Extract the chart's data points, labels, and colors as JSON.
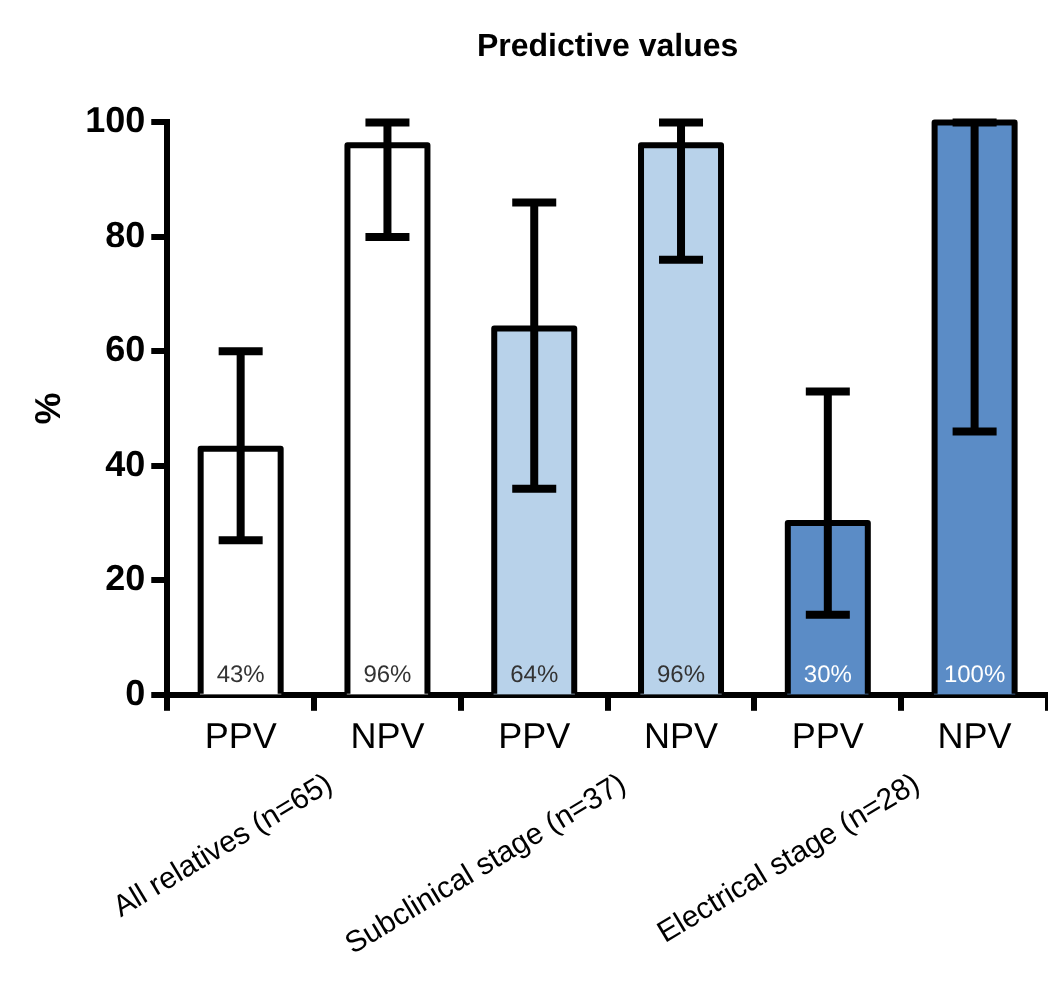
{
  "chart_data": {
    "type": "bar",
    "title": "Predictive values",
    "ylabel": "%",
    "categories": [
      "PPV",
      "NPV",
      "PPV",
      "NPV",
      "PPV",
      "NPV"
    ],
    "values": [
      43,
      96,
      64,
      96,
      30,
      100
    ],
    "colors": [
      "#ffffff",
      "#ffffff",
      "#b8d2ea",
      "#b8d2ea",
      "#5b8cc6",
      "#5b8cc6"
    ],
    "errors": [
      [
        27,
        60
      ],
      [
        80,
        100
      ],
      [
        36,
        86
      ],
      [
        76,
        100
      ],
      [
        14,
        53
      ],
      [
        46,
        100
      ]
    ],
    "value_labels": [
      "43%",
      "96%",
      "64%",
      "96%",
      "30%",
      "100%"
    ],
    "ylim": [
      0,
      100
    ],
    "yticks": [
      0,
      20,
      40,
      60,
      80,
      100
    ],
    "annotations": [
      "All relatives (n=65)",
      "Subclinical stage (n=37)",
      "Electrical stage (n=28)"
    ]
  }
}
